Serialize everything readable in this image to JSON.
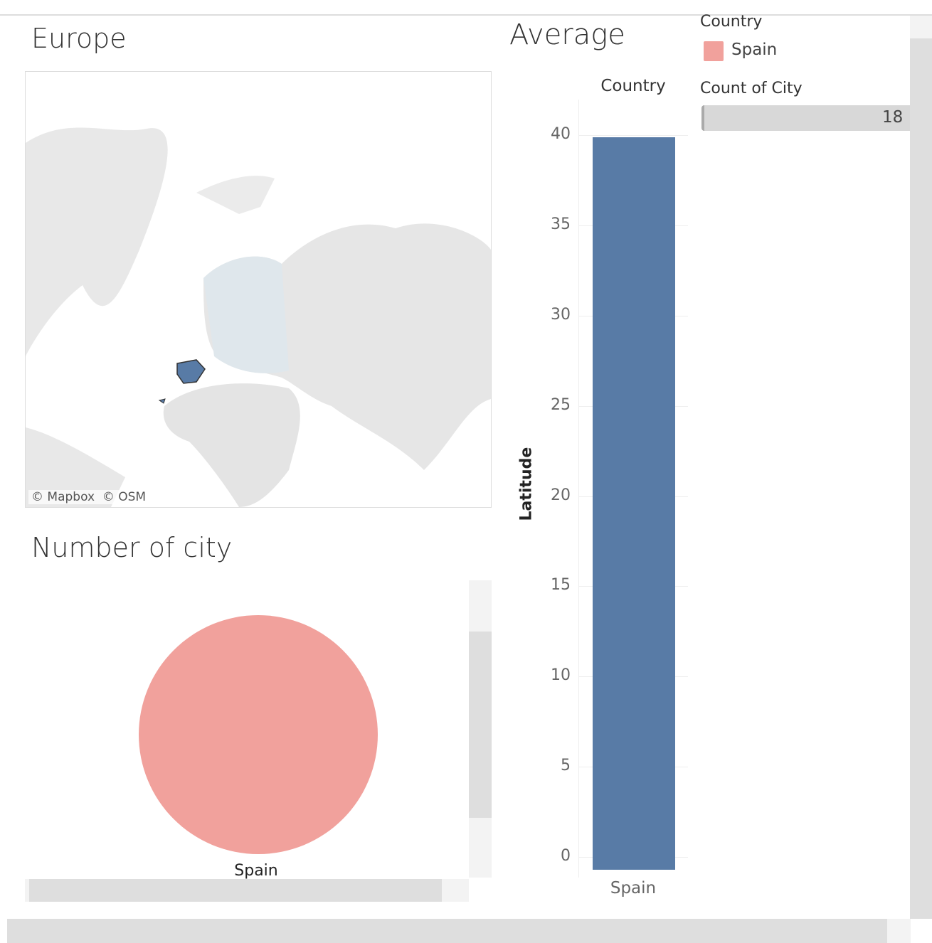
{
  "map": {
    "title": "Europe",
    "attribution": [
      "© Mapbox",
      "© OSM"
    ],
    "highlight_color": "#587ba6"
  },
  "pie": {
    "title": "Number of city",
    "label": "Spain",
    "color": "#f1a19c"
  },
  "bar_title": "Average Latitude",
  "legend": {
    "title": "Country",
    "items": [
      {
        "label": "Spain",
        "color": "#f1a19c"
      }
    ],
    "size_title": "Count of City",
    "size_value": "18"
  },
  "chart_data": {
    "type": "bar",
    "header": "Country",
    "categories": [
      "Spain"
    ],
    "values": [
      39.9
    ],
    "ylabel": "Latitude",
    "ylim": [
      0,
      40
    ],
    "yticks": [
      "0",
      "5",
      "10",
      "15",
      "20",
      "25",
      "30",
      "35",
      "40"
    ],
    "color": "#587ba6",
    "grid": true
  }
}
